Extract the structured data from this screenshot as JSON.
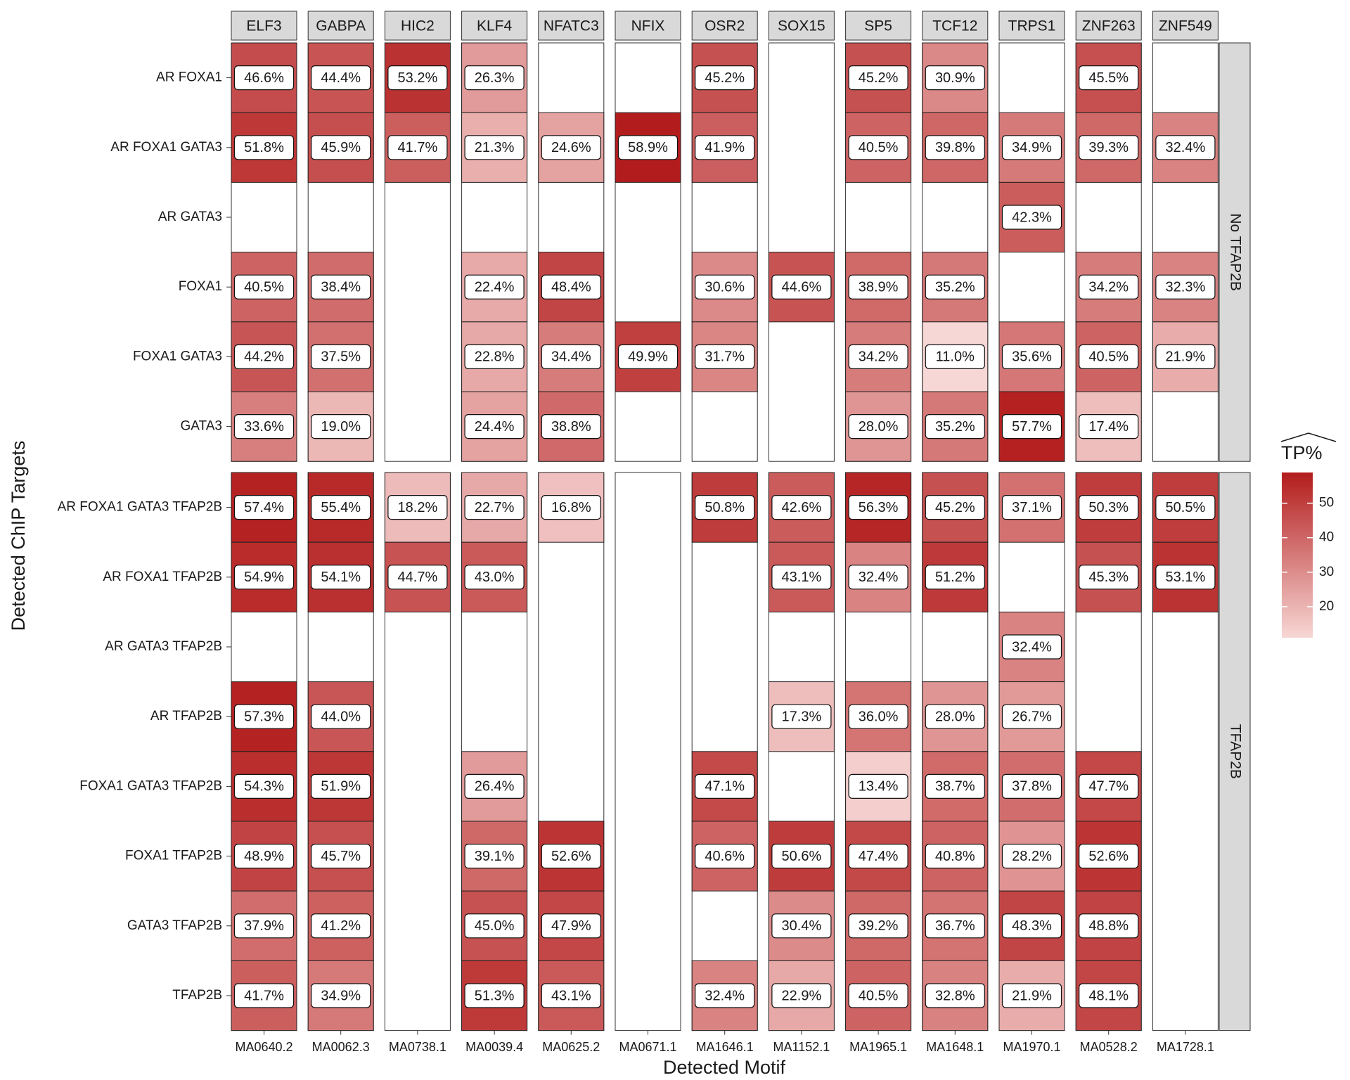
{
  "chart_data": {
    "type": "heatmap",
    "x_label": "Detected Motif",
    "y_label": "Detected ChIP Targets",
    "columns": [
      "ELF3",
      "GABPA",
      "HIC2",
      "KLF4",
      "NFATC3",
      "NFIX",
      "OSR2",
      "SOX15",
      "SP5",
      "TCF12",
      "TRPS1",
      "ZNF263",
      "ZNF549"
    ],
    "column_ids": [
      "MA0640.2",
      "MA0062.3",
      "MA0738.1",
      "MA0039.4",
      "MA0625.2",
      "MA0671.1",
      "MA1646.1",
      "MA1152.1",
      "MA1965.1",
      "MA1648.1",
      "MA1970.1",
      "MA0528.2",
      "MA1728.1"
    ],
    "panels": [
      {
        "name": "No TFAP2B",
        "rows": [
          "AR FOXA1",
          "AR FOXA1 GATA3",
          "AR GATA3",
          "FOXA1",
          "FOXA1 GATA3",
          "GATA3"
        ],
        "values": [
          [
            46.6,
            44.4,
            53.2,
            26.3,
            null,
            null,
            45.2,
            null,
            45.2,
            30.9,
            null,
            45.5,
            null
          ],
          [
            51.8,
            45.9,
            41.7,
            21.3,
            24.6,
            58.9,
            41.9,
            null,
            40.5,
            39.8,
            34.9,
            39.3,
            32.4
          ],
          [
            null,
            null,
            null,
            null,
            null,
            null,
            null,
            null,
            null,
            null,
            42.3,
            null,
            null
          ],
          [
            40.5,
            38.4,
            null,
            22.4,
            48.4,
            null,
            30.6,
            44.6,
            38.9,
            35.2,
            null,
            34.2,
            32.3
          ],
          [
            44.2,
            37.5,
            null,
            22.8,
            34.4,
            49.9,
            31.7,
            null,
            34.2,
            11.0,
            35.6,
            40.5,
            21.9
          ],
          [
            33.6,
            19.0,
            null,
            24.4,
            38.8,
            null,
            null,
            null,
            28.0,
            35.2,
            57.7,
            17.4,
            null
          ]
        ],
        "value_labels": [
          [
            "46.6%",
            "44.4%",
            "53.2%",
            "26.3%",
            null,
            null,
            "45.2%",
            null,
            "45.2%",
            "30.9%",
            null,
            "45.5%",
            null
          ],
          [
            "51.8%",
            "45.9%",
            "41.7%",
            "21.3%",
            "24.6%",
            "58.9%",
            "41.9%",
            null,
            "40.5%",
            "39.8%",
            "34.9%",
            "39.3%",
            "32.4%"
          ],
          [
            null,
            null,
            null,
            null,
            null,
            null,
            null,
            null,
            null,
            null,
            "42.3%",
            null,
            null
          ],
          [
            "40.5%",
            "38.4%",
            null,
            "22.4%",
            "48.4%",
            null,
            "30.6%",
            "44.6%",
            "38.9%",
            "35.2%",
            null,
            "34.2%",
            "32.3%"
          ],
          [
            "44.2%",
            "37.5%",
            null,
            "22.8%",
            "34.4%",
            "49.9%",
            "31.7%",
            null,
            "34.2%",
            "11.0%",
            "35.6%",
            "40.5%",
            "21.9%"
          ],
          [
            "33.6%",
            "19.0%",
            null,
            "24.4%",
            "38.8%",
            null,
            null,
            null,
            "28.0%",
            "35.2%",
            "57.7%",
            "17.4%",
            null
          ]
        ]
      },
      {
        "name": "TFAP2B",
        "rows": [
          "AR FOXA1 GATA3 TFAP2B",
          "AR FOXA1 TFAP2B",
          "AR GATA3 TFAP2B",
          "AR TFAP2B",
          "FOXA1 GATA3 TFAP2B",
          "FOXA1 TFAP2B",
          "GATA3 TFAP2B",
          "TFAP2B"
        ],
        "values": [
          [
            57.4,
            55.4,
            18.2,
            22.7,
            16.8,
            null,
            50.8,
            42.6,
            56.3,
            45.2,
            37.1,
            50.3,
            50.5
          ],
          [
            54.9,
            54.1,
            44.7,
            43.0,
            null,
            null,
            null,
            43.1,
            32.4,
            51.2,
            null,
            45.3,
            53.1
          ],
          [
            null,
            null,
            null,
            null,
            null,
            null,
            null,
            null,
            null,
            null,
            32.4,
            null,
            null
          ],
          [
            57.3,
            44.0,
            null,
            null,
            null,
            null,
            null,
            17.3,
            36.0,
            28.0,
            26.7,
            null,
            null
          ],
          [
            54.3,
            51.9,
            null,
            26.4,
            null,
            null,
            47.1,
            null,
            13.4,
            38.7,
            37.8,
            47.7,
            null
          ],
          [
            48.9,
            45.7,
            null,
            39.1,
            52.6,
            null,
            40.6,
            50.6,
            47.4,
            40.8,
            28.2,
            52.6,
            null
          ],
          [
            37.9,
            41.2,
            null,
            45.0,
            47.9,
            null,
            null,
            30.4,
            39.2,
            36.7,
            48.3,
            48.8,
            null
          ],
          [
            41.7,
            34.9,
            null,
            51.3,
            43.1,
            null,
            32.4,
            22.9,
            40.5,
            32.8,
            21.9,
            48.1,
            null
          ]
        ],
        "value_labels": [
          [
            "57.4%",
            "55.4%",
            "18.2%",
            "22.7%",
            "16.8%",
            null,
            "50.8%",
            "42.6%",
            "56.3%",
            "45.2%",
            "37.1%",
            "50.3%",
            "50.5%"
          ],
          [
            "54.9%",
            "54.1%",
            "44.7%",
            "43.0%",
            null,
            null,
            null,
            "43.1%",
            "32.4%",
            "51.2%",
            null,
            "45.3%",
            "53.1%"
          ],
          [
            null,
            null,
            null,
            null,
            null,
            null,
            null,
            null,
            null,
            null,
            "32.4%",
            null,
            null
          ],
          [
            "57.3%",
            "44.0%",
            null,
            null,
            null,
            null,
            null,
            "17.3%",
            "36.0%",
            "28.0%",
            "26.7%",
            null,
            null
          ],
          [
            "54.3%",
            "51.9%",
            null,
            "26.4%",
            null,
            null,
            "47.1%",
            null,
            "13.4%",
            "38.7%",
            "37.8%",
            "47.7%",
            null
          ],
          [
            "48.9%",
            "45.7%",
            null,
            "39.1%",
            "52.6%",
            null,
            "40.6%",
            "50.6%",
            "47.4%",
            "40.8%",
            "28.2%",
            "52.6%",
            null
          ],
          [
            "37.9%",
            "41.2%",
            null,
            "45.0%",
            "47.9%",
            null,
            null,
            "30.4%",
            "39.2%",
            "36.7%",
            "48.3%",
            "48.8%",
            null
          ],
          [
            "41.7%",
            "34.9%",
            null,
            "51.3%",
            "43.1%",
            null,
            "32.4%",
            "22.9%",
            "40.5%",
            "32.8%",
            "21.9%",
            "48.1%",
            null
          ]
        ]
      }
    ],
    "legend": {
      "title": "TP%",
      "clim": [
        11.0,
        58.9
      ],
      "colors": [
        "#f7d7d5",
        "#b31c1c"
      ],
      "ticks": [
        20,
        30,
        40,
        50
      ]
    }
  }
}
